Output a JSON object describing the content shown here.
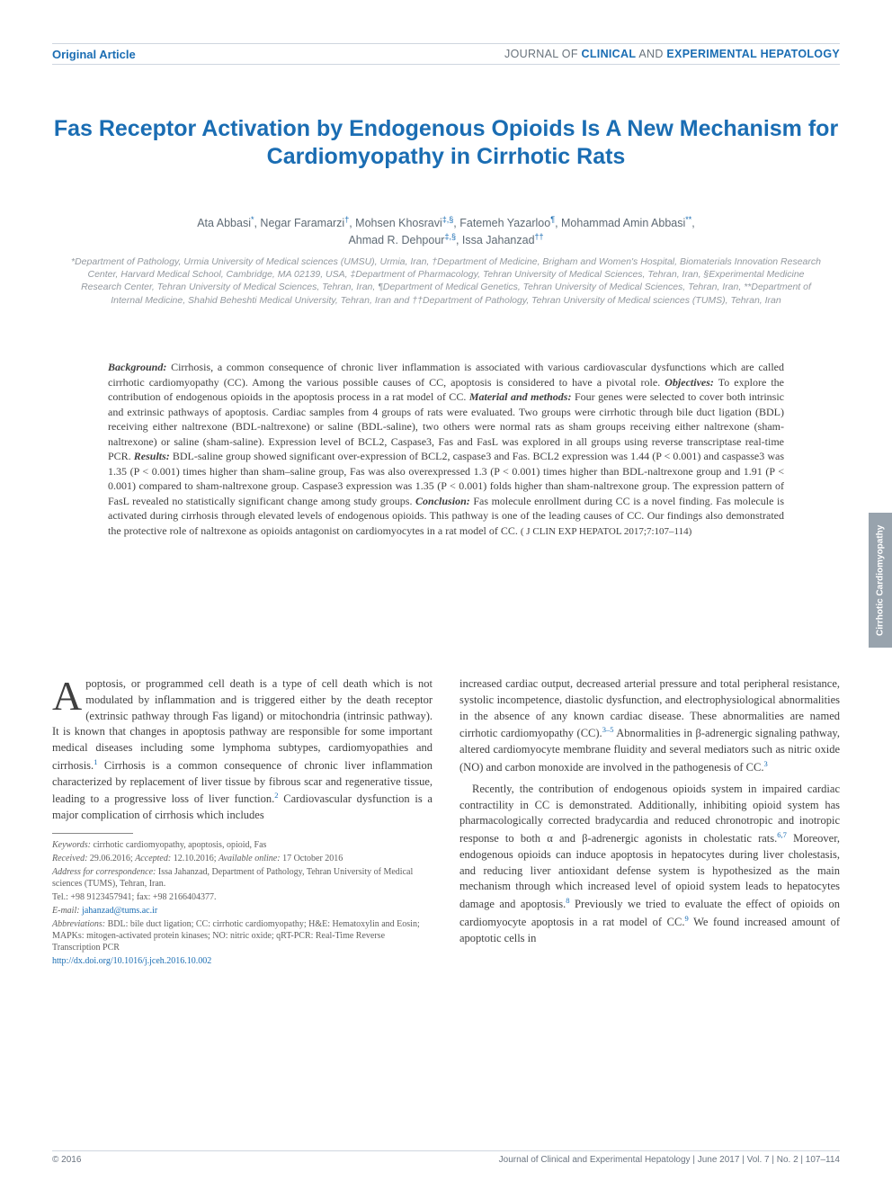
{
  "header": {
    "article_type": "Original Article",
    "journal_prefix": "JOURNAL OF ",
    "journal_emph": "CLINICAL",
    "journal_mid": " AND ",
    "journal_emph2": "EXPERIMENTAL HEPATOLOGY"
  },
  "title": "Fas Receptor Activation by Endogenous Opioids Is A New Mechanism for Cardiomyopathy in Cirrhotic Rats",
  "authors_html": "Ata Abbasi*, Negar Faramarzi†, Mohsen Khosravi‡,§, Fatemeh Yazarloo¶, Mohammad Amin Abbasi**, Ahmad R. Dehpour‡,§, Issa Jahanzad††",
  "affiliations": "*Department of Pathology, Urmia University of Medical sciences (UMSU), Urmia, Iran, †Department of Medicine, Brigham and Women's Hospital, Biomaterials Innovation Research Center, Harvard Medical School, Cambridge, MA 02139, USA, ‡Department of Pharmacology, Tehran University of Medical Sciences, Tehran, Iran, §Experimental Medicine Research Center, Tehran University of Medical Sciences, Tehran, Iran, ¶Department of Medical Genetics, Tehran University of Medical Sciences, Tehran, Iran, **Department of Internal Medicine, Shahid Beheshti Medical University, Tehran, Iran and ††Department of Pathology, Tehran University of Medical sciences (TUMS), Tehran, Iran",
  "abstract": {
    "background_label": "Background:",
    "background": " Cirrhosis, a common consequence of chronic liver inflammation is associated with various cardiovascular dysfunctions which are called cirrhotic cardiomyopathy (CC). Among the various possible causes of CC, apoptosis is considered to have a pivotal role. ",
    "objectives_label": "Objectives:",
    "objectives": " To explore the contribution of endogenous opioids in the apoptosis process in a rat model of CC. ",
    "methods_label": "Material and methods:",
    "methods": " Four genes were selected to cover both intrinsic and extrinsic pathways of apoptosis. Cardiac samples from 4 groups of rats were evaluated. Two groups were cirrhotic through bile duct ligation (BDL) receiving either naltrexone (BDL-naltrexone) or saline (BDL-saline), two others were normal rats as sham groups receiving either naltrexone (sham-naltrexone) or saline (sham-saline). Expression level of BCL2, Caspase3, Fas and FasL was explored in all groups using reverse transcriptase real-time PCR. ",
    "results_label": "Results:",
    "results": " BDL-saline group showed significant over-expression of BCL2, caspase3 and Fas. BCL2 expression was 1.44 (P < 0.001) and caspasse3 was 1.35 (P < 0.001) times higher than sham–saline group, Fas was also overexpressed 1.3 (P < 0.001) times higher than BDL-naltrexone group and 1.91 (P < 0.001) compared to sham-naltrexone group. Caspase3 expression was 1.35 (P < 0.001) folds higher than sham-naltrexone group. The expression pattern of FasL revealed no statistically significant change among study groups. ",
    "conclusion_label": "Conclusion:",
    "conclusion": " Fas molecule enrollment during CC is a novel finding. Fas molecule is activated during cirrhosis through elevated levels of endogenous opioids. This pathway is one of the leading causes of CC. Our findings also demonstrated the protective role of naltrexone as opioids antagonist on cardiomyocytes in a rat model of CC. ",
    "citation": "( J CLIN EXP HEPATOL 2017;7:107–114)"
  },
  "body": {
    "col1_p1_dropcap": "A",
    "col1_p1": "poptosis, or programmed cell death is a type of cell death which is not modulated by inflammation and is triggered either by the death receptor (extrinsic pathway through Fas ligand) or mitochondria (intrinsic pathway). It is known that changes in apoptosis pathway are responsible for some important medical diseases including some lymphoma subtypes, cardiomyopathies and cirrhosis.",
    "col1_p1_end": " Cirrhosis is a common consequence of chronic liver inflammation characterized by replacement of liver tissue by fibrous scar and regenerative tissue, leading to a progressive loss of liver function.",
    "col1_p1_tail": " Cardiovascular dysfunction is a major complication of cirrhosis which includes",
    "col2_p1": "increased cardiac output, decreased arterial pressure and total peripheral resistance, systolic incompetence, diastolic dysfunction, and electrophysiological abnormalities in the absence of any known cardiac disease. These abnormalities are named cirrhotic cardiomyopathy (CC).",
    "col2_p1_end": " Abnormalities in β-adrenergic signaling pathway, altered cardiomyocyte membrane fluidity and several mediators such as nitric oxide (NO) and carbon monoxide are involved in the pathogenesis of CC.",
    "col2_p2": "Recently, the contribution of endogenous opioids system in impaired cardiac contractility in CC is demonstrated. Additionally, inhibiting opioid system has pharmacologically corrected bradycardia and reduced chronotropic and inotropic response to both α and β-adrenergic agonists in cholestatic rats.",
    "col2_p2_mid": " Moreover, endogenous opioids can induce apoptosis in hepatocytes during liver cholestasis, and reducing liver antioxidant defense system is hypothesized as the main mechanism through which increased level of opioid system leads to hepatocytes damage and apoptosis.",
    "col2_p2_end": " Previously we tried to evaluate the effect of opioids on cardiomyocyte apoptosis in a rat model of CC.",
    "col2_p2_tail": " We found increased amount of apoptotic cells in"
  },
  "footnotes": {
    "keywords_label": "Keywords:",
    "keywords": " cirrhotic cardiomyopathy, apoptosis, opioid, Fas",
    "received_label": "Received:",
    "received": " 29.06.2016; ",
    "accepted_label": "Accepted:",
    "accepted": " 12.10.2016; ",
    "available_label": "Available online:",
    "available": " 17 October 2016",
    "address_label": "Address for correspondence:",
    "address": " Issa Jahanzad, Department of Pathology, Tehran University of Medical sciences (TUMS), Tehran, Iran.",
    "tel": "Tel.: +98 9123457941; fax: +98 2166404377.",
    "email_label": "E-mail:",
    "email": " jahanzad@tums.ac.ir",
    "abbrev_label": "Abbreviations:",
    "abbrev": " BDL: bile duct ligation; CC: cirrhotic cardiomyopathy; H&E: Hematoxylin and Eosin; MAPKs: mitogen-activated protein kinases; NO: nitric oxide; qRT-PCR: Real-Time Reverse Transcription PCR",
    "doi": "http://dx.doi.org/10.1016/j.jceh.2016.10.002"
  },
  "side_tab": "Cirrhotic Cardiomyopathy",
  "footer": {
    "copyright": "© 2016",
    "right": "Journal of Clinical and Experimental Hepatology | June 2017 | Vol. 7 | No. 2 | 107–114"
  },
  "refs": {
    "r1": "1",
    "r2": "2",
    "r3_5": "3–5",
    "r3": "3",
    "r6_7": "6,7",
    "r8": "8",
    "r9": "9"
  },
  "colors": {
    "accent": "#1a6db3",
    "header_grey": "#69737c",
    "aff_grey": "#93999f",
    "body_text": "#3f3f3f",
    "side_tab_bg": "#98a3ad",
    "rule": "#cfd6df"
  }
}
